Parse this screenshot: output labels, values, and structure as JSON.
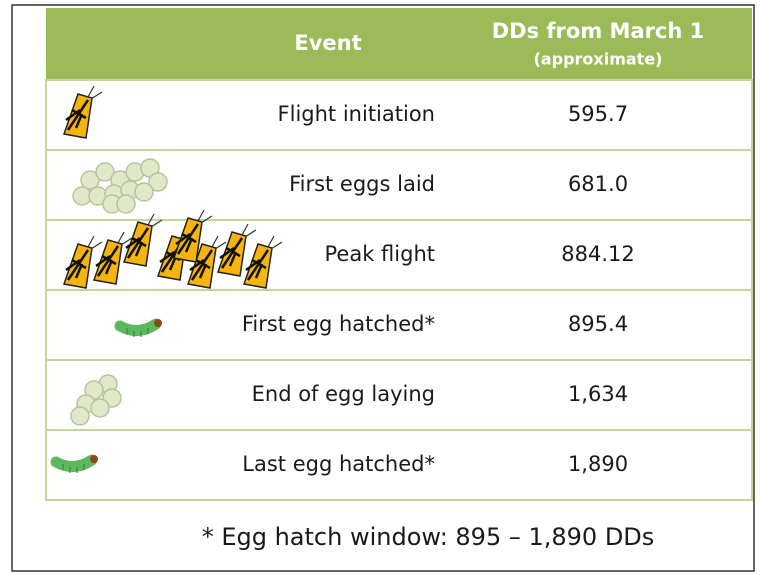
{
  "header": {
    "event": "Event",
    "dd": "DDs from March 1",
    "dd_sub": "(approximate)"
  },
  "rows": [
    {
      "event": "Flight initiation",
      "dd": "595.7"
    },
    {
      "event": "First eggs laid",
      "dd": "681.0"
    },
    {
      "event": "Peak flight",
      "dd": "884.12"
    },
    {
      "event": "First egg hatched*",
      "dd": "895.4"
    },
    {
      "event": "End of egg laying",
      "dd": "1,634"
    },
    {
      "event": "Last egg hatched*",
      "dd": "1,890"
    }
  ],
  "footnote": "* Egg hatch window: 895 – 1,890 DDs"
}
